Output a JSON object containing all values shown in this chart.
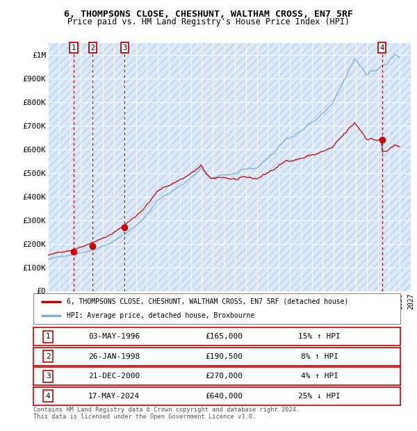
{
  "title_line1": "6, THOMPSONS CLOSE, CHESHUNT, WALTHAM CROSS, EN7 5RF",
  "title_line2": "Price paid vs. HM Land Registry's House Price Index (HPI)",
  "ylabel_ticks": [
    "£0",
    "£100K",
    "£200K",
    "£300K",
    "£400K",
    "£500K",
    "£600K",
    "£700K",
    "£800K",
    "£900K",
    "£1M"
  ],
  "ytick_values": [
    0,
    100000,
    200000,
    300000,
    400000,
    500000,
    600000,
    700000,
    800000,
    900000,
    1000000
  ],
  "year_start": 1994,
  "year_end": 2027,
  "ylim_max": 1050000,
  "background_color": "#dce9f8",
  "hatch_color": "#bdd0e8",
  "sale_dates": [
    1996.34,
    1998.07,
    2000.97,
    2024.38
  ],
  "sale_prices": [
    165000,
    190500,
    270000,
    640000
  ],
  "sale_labels": [
    "1",
    "2",
    "3",
    "4"
  ],
  "legend_label1": "6, THOMPSONS CLOSE, CHESHUNT, WALTHAM CROSS, EN7 5RF (detached house)",
  "legend_label2": "HPI: Average price, detached house, Broxbourne",
  "table_rows": [
    [
      "1",
      "03-MAY-1996",
      "£165,000",
      "15% ↑ HPI"
    ],
    [
      "2",
      "26-JAN-1998",
      "£190,500",
      "8% ↑ HPI"
    ],
    [
      "3",
      "21-DEC-2000",
      "£270,000",
      "4% ↑ HPI"
    ],
    [
      "4",
      "17-MAY-2024",
      "£640,000",
      "25% ↓ HPI"
    ]
  ],
  "footnote": "Contains HM Land Registry data © Crown copyright and database right 2024.\nThis data is licensed under the Open Government Licence v3.0.",
  "line_color_property": "#cc0000",
  "line_color_hpi": "#7ab0d4",
  "marker_color": "#cc0000",
  "dashed_line_color": "#cc0000",
  "box_edge_color": "#cc0000"
}
